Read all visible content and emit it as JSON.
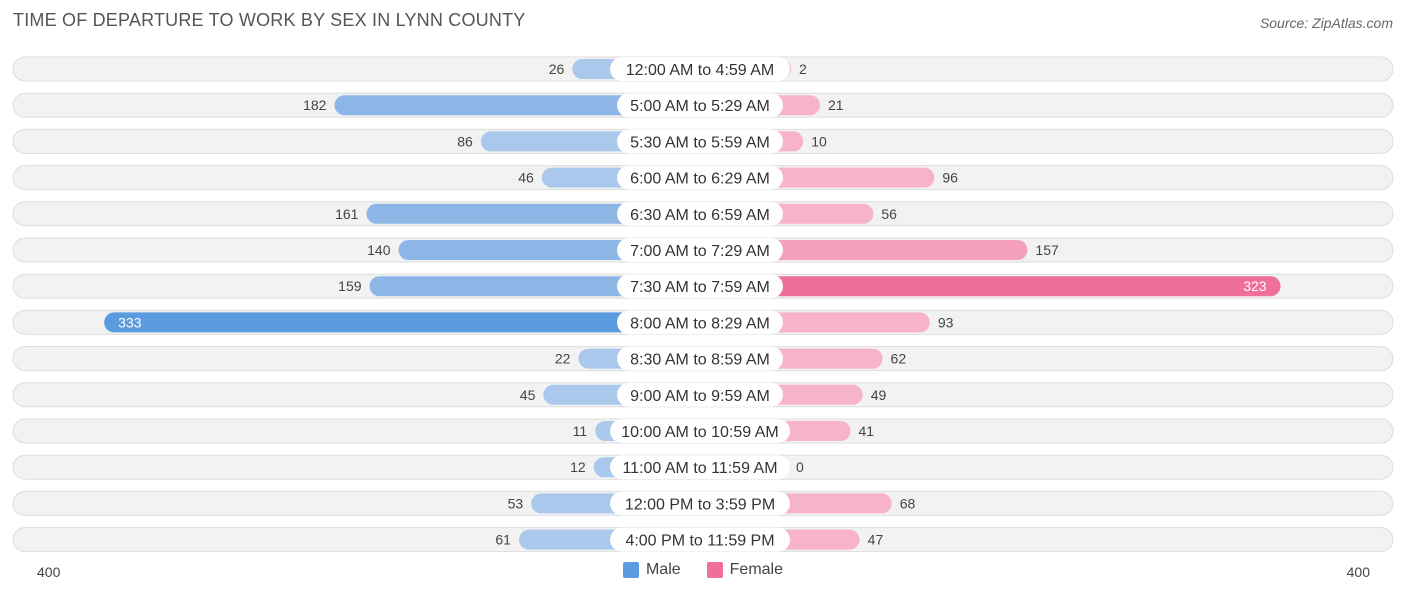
{
  "header": {
    "title": "TIME OF DEPARTURE TO WORK BY SEX IN LYNN COUNTY",
    "source": "Source: ZipAtlas.com"
  },
  "legend": {
    "male_label": "Male",
    "female_label": "Female"
  },
  "axis": {
    "left_label": "400",
    "right_label": "400"
  },
  "colors": {
    "male": "#8db6e6",
    "male_light": "#a9c8ec",
    "male_strong": "#5b9be0",
    "female": "#f4a0bb",
    "female_light": "#f7b3c8",
    "female_strong": "#f06f98",
    "row_bg": "#f2f2f2",
    "row_border": "#dddddd"
  },
  "chart_data": {
    "type": "bar",
    "orientation": "horizontal-diverging",
    "title": "TIME OF DEPARTURE TO WORK BY SEX IN LYNN COUNTY",
    "xlim": [
      -400,
      400
    ],
    "categories": [
      "12:00 AM to 4:59 AM",
      "5:00 AM to 5:29 AM",
      "5:30 AM to 5:59 AM",
      "6:00 AM to 6:29 AM",
      "6:30 AM to 6:59 AM",
      "7:00 AM to 7:29 AM",
      "7:30 AM to 7:59 AM",
      "8:00 AM to 8:29 AM",
      "8:30 AM to 8:59 AM",
      "9:00 AM to 9:59 AM",
      "10:00 AM to 10:59 AM",
      "11:00 AM to 11:59 AM",
      "12:00 PM to 3:59 PM",
      "4:00 PM to 11:59 PM"
    ],
    "series": [
      {
        "name": "Male",
        "values": [
          26,
          182,
          86,
          46,
          161,
          140,
          159,
          333,
          22,
          45,
          11,
          12,
          53,
          61
        ]
      },
      {
        "name": "Female",
        "values": [
          2,
          21,
          10,
          96,
          56,
          157,
          323,
          93,
          62,
          49,
          41,
          0,
          68,
          47
        ]
      }
    ],
    "legend_position": "bottom-center"
  }
}
